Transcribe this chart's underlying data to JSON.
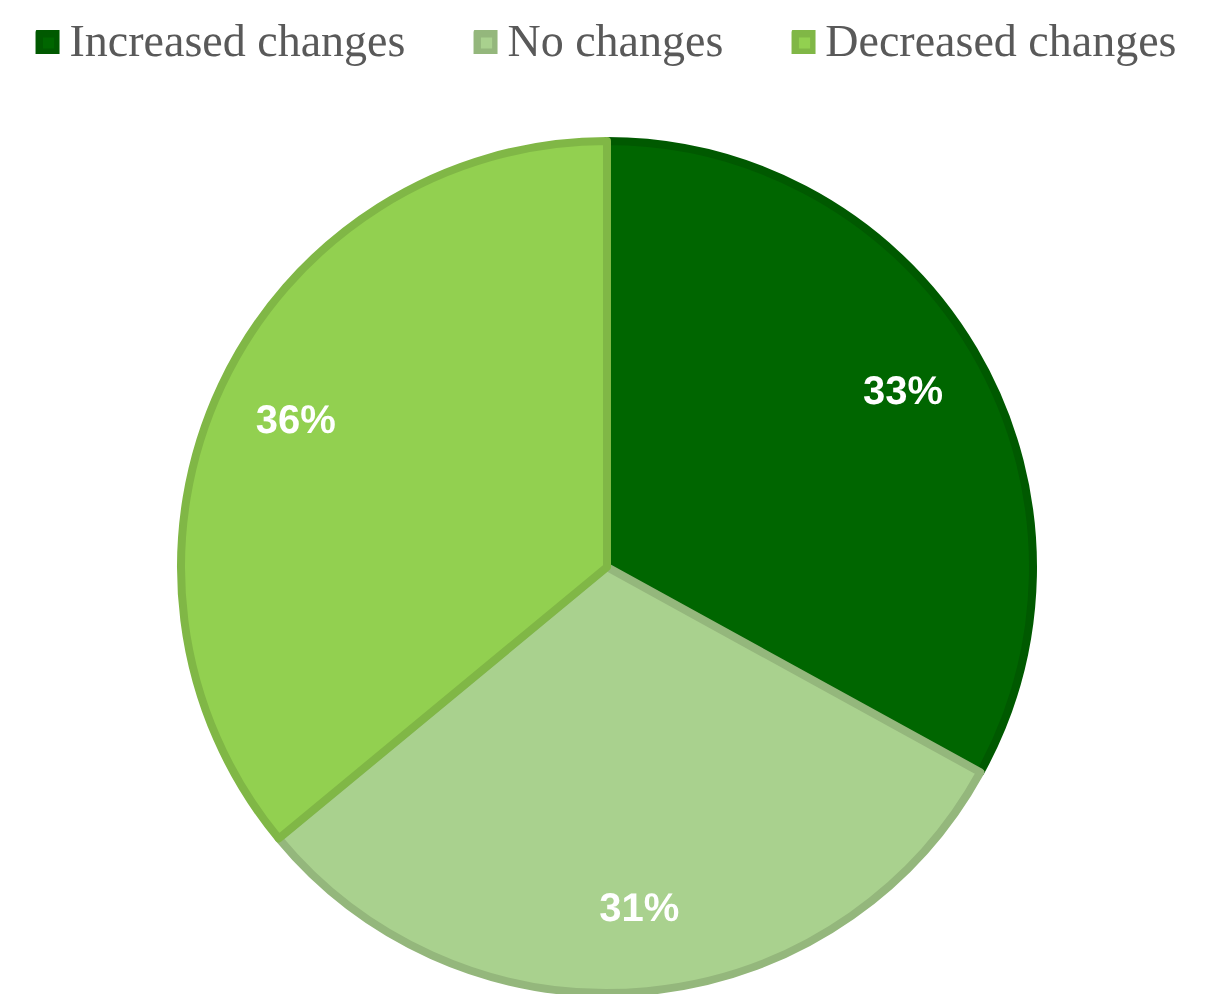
{
  "chart_data": {
    "type": "pie",
    "categories": [
      "Increased changes",
      "No changes",
      "Decreased changes"
    ],
    "values": [
      33,
      31,
      36
    ],
    "colors": [
      "#006600",
      "#a9d18e",
      "#92d050"
    ],
    "value_labels": [
      "33%",
      "31%",
      "36%"
    ],
    "legend": "top"
  }
}
